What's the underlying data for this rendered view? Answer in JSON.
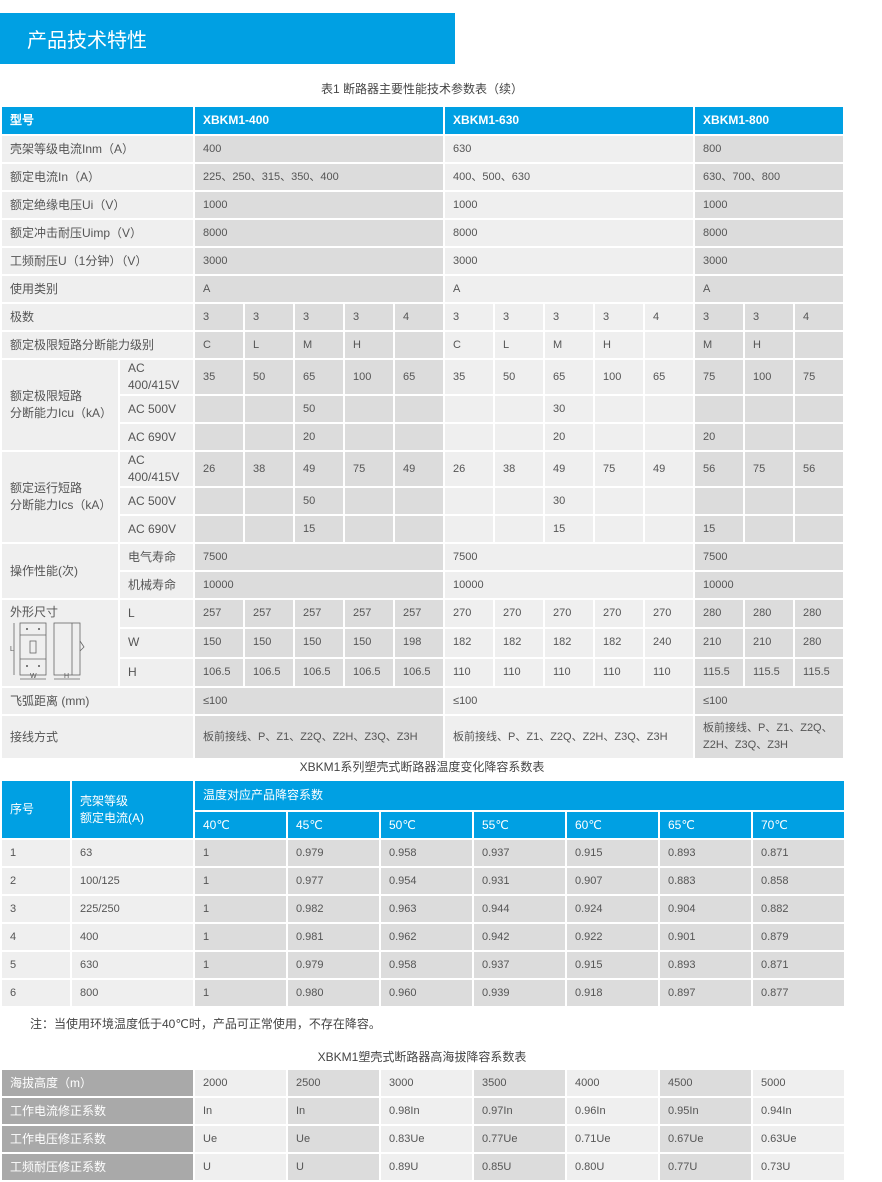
{
  "section_title": "产品技术特性",
  "table1": {
    "title": "表1 断路器主要性能技术参数表（续）",
    "header": [
      "型号",
      "XBKM1-400",
      "XBKM1-630",
      "XBKM1-800"
    ],
    "rows": [
      {
        "label": "壳架等级电流Inm（A）",
        "groups": [
          "400",
          "630",
          "800"
        ]
      },
      {
        "label": "额定电流In（A）",
        "groups": [
          "225、250、315、350、400",
          "400、500、630",
          "630、700、800"
        ]
      },
      {
        "label": "额定绝缘电压Ui（V）",
        "groups": [
          "1000",
          "1000",
          "1000"
        ]
      },
      {
        "label": "额定冲击耐压Uimp（V）",
        "groups": [
          "8000",
          "8000",
          "8000"
        ]
      },
      {
        "label": "工频耐压U（1分钟）（V）",
        "groups": [
          "3000",
          "3000",
          "3000"
        ]
      },
      {
        "label": "使用类别",
        "groups": [
          "A",
          "A",
          "A"
        ]
      },
      {
        "label": "极数",
        "cells": [
          "3",
          "3",
          "3",
          "3",
          "4",
          "3",
          "3",
          "3",
          "3",
          "4",
          "3",
          "3",
          "4"
        ]
      },
      {
        "label": "额定极限短路分断能力级别",
        "cells": [
          "C",
          "L",
          "M",
          "H",
          "",
          "C",
          "L",
          "M",
          "H",
          "",
          "M",
          "H",
          ""
        ]
      },
      {
        "label": "额定极限短路\n分断能力Icu（kA）",
        "subs": [
          {
            "label": "AC 400/415V",
            "cells": [
              "35",
              "50",
              "65",
              "100",
              "65",
              "35",
              "50",
              "65",
              "100",
              "65",
              "75",
              "100",
              "75"
            ]
          },
          {
            "label": "AC 500V",
            "cells": [
              "",
              "",
              "50",
              "",
              "",
              "",
              "",
              "30",
              "",
              "",
              "",
              "",
              ""
            ]
          },
          {
            "label": "AC 690V",
            "cells": [
              "",
              "",
              "20",
              "",
              "",
              "",
              "",
              "20",
              "",
              "",
              "20",
              "",
              ""
            ]
          }
        ]
      },
      {
        "label": "额定运行短路\n分断能力Ics（kA）",
        "subs": [
          {
            "label": "AC 400/415V",
            "cells": [
              "26",
              "38",
              "49",
              "75",
              "49",
              "26",
              "38",
              "49",
              "75",
              "49",
              "56",
              "75",
              "56"
            ]
          },
          {
            "label": "AC 500V",
            "cells": [
              "",
              "",
              "50",
              "",
              "",
              "",
              "",
              "30",
              "",
              "",
              "",
              "",
              ""
            ]
          },
          {
            "label": "AC 690V",
            "cells": [
              "",
              "",
              "15",
              "",
              "",
              "",
              "",
              "15",
              "",
              "",
              "15",
              "",
              ""
            ]
          }
        ]
      },
      {
        "label": "操作性能(次)",
        "subs": [
          {
            "label": "电气寿命",
            "groups": [
              "7500",
              "7500",
              "7500"
            ]
          },
          {
            "label": "机械寿命",
            "groups": [
              "10000",
              "10000",
              "10000"
            ]
          }
        ]
      },
      {
        "label": "外形尺寸",
        "drawing": true,
        "subs": [
          {
            "label": "L",
            "cells": [
              "257",
              "257",
              "257",
              "257",
              "257",
              "270",
              "270",
              "270",
              "270",
              "270",
              "280",
              "280",
              "280"
            ]
          },
          {
            "label": "W",
            "cells": [
              "150",
              "150",
              "150",
              "150",
              "198",
              "182",
              "182",
              "182",
              "182",
              "240",
              "210",
              "210",
              "280"
            ]
          },
          {
            "label": "H",
            "cells": [
              "106.5",
              "106.5",
              "106.5",
              "106.5",
              "106.5",
              "110",
              "110",
              "110",
              "110",
              "110",
              "115.5",
              "115.5",
              "115.5"
            ]
          }
        ]
      },
      {
        "label": "飞弧距离 (mm)",
        "groups": [
          "≤100",
          "≤100",
          "≤100"
        ]
      },
      {
        "label": "接线方式",
        "groups": [
          "板前接线、P、Z1、Z2Q、Z2H、Z3Q、Z3H",
          "板前接线、P、Z1、Z2Q、Z2H、Z3Q、Z3H",
          "板前接线、P、Z1、Z2Q、\nZ2H、Z3Q、Z3H"
        ]
      }
    ],
    "drawing_labels": [
      "L",
      "W",
      "H"
    ]
  },
  "table2": {
    "title": "XBKM1系列塑壳式断路器温度变化降容系数表",
    "col_no": "序号",
    "col_frame": "壳架等级\n额定电流(A)",
    "col_group": "温度对应产品降容系数",
    "temps": [
      "40℃",
      "45℃",
      "50℃",
      "55℃",
      "60℃",
      "65℃",
      "70℃"
    ],
    "rows": [
      [
        "1",
        "63",
        "1",
        "0.979",
        "0.958",
        "0.937",
        "0.915",
        "0.893",
        "0.871"
      ],
      [
        "2",
        "100/125",
        "1",
        "0.977",
        "0.954",
        "0.931",
        "0.907",
        "0.883",
        "0.858"
      ],
      [
        "3",
        "225/250",
        "1",
        "0.982",
        "0.963",
        "0.944",
        "0.924",
        "0.904",
        "0.882"
      ],
      [
        "4",
        "400",
        "1",
        "0.981",
        "0.962",
        "0.942",
        "0.922",
        "0.901",
        "0.879"
      ],
      [
        "5",
        "630",
        "1",
        "0.979",
        "0.958",
        "0.937",
        "0.915",
        "0.893",
        "0.871"
      ],
      [
        "6",
        "800",
        "1",
        "0.980",
        "0.960",
        "0.939",
        "0.918",
        "0.897",
        "0.877"
      ]
    ],
    "note": "注：当使用环境温度低于40℃时，产品可正常使用，不存在降容。"
  },
  "table3": {
    "title": "XBKM1塑壳式断路器高海拔降容系数表",
    "rows": [
      {
        "label": "海拔高度（m）",
        "cells": [
          "2000",
          "2500",
          "3000",
          "3500",
          "4000",
          "4500",
          "5000"
        ]
      },
      {
        "label": "工作电流修正系数",
        "cells": [
          "In",
          "In",
          "0.98In",
          "0.97In",
          "0.96In",
          "0.95In",
          "0.94In"
        ]
      },
      {
        "label": "工作电压修正系数",
        "cells": [
          "Ue",
          "Ue",
          "0.83Ue",
          "0.77Ue",
          "0.71Ue",
          "0.67Ue",
          "0.63Ue"
        ]
      },
      {
        "label": "工频耐压修正系数",
        "cells": [
          "U",
          "U",
          "0.89U",
          "0.85U",
          "0.80U",
          "0.77U",
          "0.73U"
        ]
      }
    ]
  },
  "colors": {
    "accent": "#00a0e3",
    "cell_light": "#efefef",
    "cell_dark": "#dcdcdc",
    "label_gray": "#a9a9a9"
  }
}
